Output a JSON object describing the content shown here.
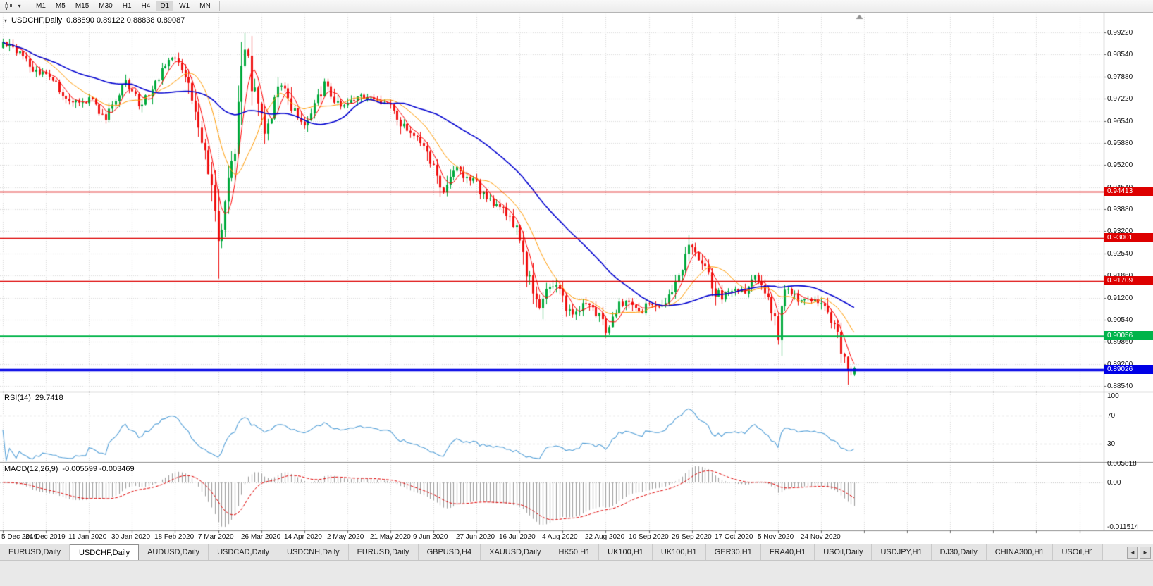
{
  "icons": {
    "symbol_dropdown": "▾",
    "toolbar_caret": "▾"
  },
  "toolbar": {
    "timeframes": [
      "M1",
      "M5",
      "M15",
      "M30",
      "H1",
      "H4",
      "D1",
      "W1",
      "MN"
    ],
    "active_timeframe": "D1"
  },
  "main_panel": {
    "symbol": "USDCHF,Daily",
    "open": "0.88890",
    "high": "0.89122",
    "low": "0.88838",
    "close": "0.89087",
    "ohlc": "0.88890 0.89122 0.88838 0.89087"
  },
  "price_axis": {
    "ticks": [
      "0.99220",
      "0.98540",
      "0.97880",
      "0.97220",
      "0.96540",
      "0.95880",
      "0.95200",
      "0.94540",
      "0.93880",
      "0.93200",
      "0.92540",
      "0.91860",
      "0.91200",
      "0.90540",
      "0.89860",
      "0.89200",
      "0.88540"
    ]
  },
  "hlines": [
    {
      "label": "0.94413",
      "value": 0.94413,
      "color": "#dd0000",
      "width": 1.4
    },
    {
      "label": "0.93001",
      "value": 0.93001,
      "color": "#dd0000",
      "width": 1.4
    },
    {
      "label": "0.91709",
      "value": 0.91709,
      "color": "#dd0000",
      "width": 1.4
    },
    {
      "label": "0.90056",
      "value": 0.90056,
      "color": "#00b44a",
      "width": 2.4
    },
    {
      "label": "0.89026",
      "value": 0.89026,
      "color": "#0000e6",
      "width": 3.4
    }
  ],
  "rsi_panel": {
    "name": "RSI(14)",
    "value": "29.7418",
    "color": "#54a0d8",
    "levels": [
      70,
      30
    ],
    "axis_labels": [
      {
        "text": "100",
        "value": 100
      },
      {
        "text": "70",
        "value": 70
      },
      {
        "text": "30",
        "value": 30
      }
    ]
  },
  "macd_panel": {
    "name": "MACD(12,26,9)",
    "values": "-0.005599 -0.003469",
    "histogram_color": "#9b9b9b",
    "signal_color": "#e00000",
    "axis_labels": [
      {
        "text": "0.005818",
        "value": 0.005818
      },
      {
        "text": "0.00",
        "value": 0
      },
      {
        "text": "-0.011514",
        "value": -0.011514
      }
    ]
  },
  "date_axis": {
    "labels": [
      "5 Dec 2019",
      "24 Dec 2019",
      "11 Jan 2020",
      "30 Jan 2020",
      "18 Feb 2020",
      "7 Mar 2020",
      "26 Mar 2020",
      "14 Apr 2020",
      "2 May 2020",
      "21 May 2020",
      "9 Jun 2020",
      "27 Jun 2020",
      "16 Jul 2020",
      "4 Aug 2020",
      "22 Aug 2020",
      "10 Sep 2020",
      "29 Sep 2020",
      "17 Oct 2020",
      "5 Nov 2020",
      "24 Nov 2020"
    ]
  },
  "tabs": {
    "items": [
      "EURUSD,Daily",
      "USDCHF,Daily",
      "AUDUSD,Daily",
      "USDCAD,Daily",
      "USDCNH,Daily",
      "EURUSD,Daily",
      "GBPUSD,H4",
      "XAUUSD,Daily",
      "HK50,H1",
      "UK100,H1",
      "UK100,H1",
      "GER30,H1",
      "FRA40,H1",
      "USOil,Daily",
      "USDJPY,H1",
      "DJ30,Daily",
      "CHINA300,H1",
      "USOil,H1"
    ],
    "active_index": 1,
    "scroll_arrows": [
      "◄",
      "►"
    ]
  },
  "chart_data": {
    "type": "candlestick",
    "symbol": "USDCHF",
    "timeframe": "Daily",
    "bars": 258,
    "bars_per_date_tick": 13,
    "ylim": [
      0.8854,
      0.9922
    ],
    "up_color": "#00a93c",
    "down_color": "#ef1010",
    "ma_lines": [
      {
        "period": 5,
        "color": "#ff0000",
        "width": 1
      },
      {
        "period": 13,
        "color": "#ff9a00",
        "width": 1
      },
      {
        "period": 40,
        "color": "#0202d0",
        "width": 1.6
      }
    ],
    "indicators": {
      "rsi_period": 14,
      "macd": [
        12,
        26,
        9
      ]
    },
    "close_anchors": [
      [
        0,
        0.989
      ],
      [
        3,
        0.987
      ],
      [
        6,
        0.9845
      ],
      [
        9,
        0.9815
      ],
      [
        13,
        0.9795
      ],
      [
        16,
        0.976
      ],
      [
        19,
        0.973
      ],
      [
        23,
        0.9705
      ],
      [
        26,
        0.9718
      ],
      [
        28,
        0.9692
      ],
      [
        31,
        0.9662
      ],
      [
        33,
        0.97
      ],
      [
        35,
        0.9745
      ],
      [
        37,
        0.9772
      ],
      [
        39,
        0.9745
      ],
      [
        41,
        0.9702
      ],
      [
        43,
        0.9722
      ],
      [
        46,
        0.9775
      ],
      [
        48,
        0.9812
      ],
      [
        50,
        0.984
      ],
      [
        52,
        0.9835
      ],
      [
        54,
        0.9808
      ],
      [
        56,
        0.975
      ],
      [
        58,
        0.9682
      ],
      [
        60,
        0.96
      ],
      [
        62,
        0.95
      ],
      [
        64,
        0.938
      ],
      [
        65,
        0.9292
      ],
      [
        66,
        0.936
      ],
      [
        67,
        0.9425
      ],
      [
        69,
        0.952
      ],
      [
        71,
        0.968
      ],
      [
        72,
        0.98
      ],
      [
        73,
        0.9888
      ],
      [
        74,
        0.9868
      ],
      [
        75,
        0.978
      ],
      [
        77,
        0.97
      ],
      [
        79,
        0.9622
      ],
      [
        81,
        0.9652
      ],
      [
        83,
        0.9748
      ],
      [
        85,
        0.976
      ],
      [
        87,
        0.9702
      ],
      [
        89,
        0.9672
      ],
      [
        91,
        0.9646
      ],
      [
        93,
        0.9672
      ],
      [
        95,
        0.972
      ],
      [
        97,
        0.9765
      ],
      [
        99,
        0.974
      ],
      [
        101,
        0.97
      ],
      [
        103,
        0.9706
      ],
      [
        105,
        0.9716
      ],
      [
        108,
        0.973
      ],
      [
        111,
        0.972
      ],
      [
        114,
        0.9712
      ],
      [
        117,
        0.97
      ],
      [
        119,
        0.9666
      ],
      [
        121,
        0.9632
      ],
      [
        124,
        0.9616
      ],
      [
        127,
        0.9576
      ],
      [
        129,
        0.9532
      ],
      [
        131,
        0.9482
      ],
      [
        133,
        0.9432
      ],
      [
        135,
        0.947
      ],
      [
        137,
        0.9512
      ],
      [
        139,
        0.9492
      ],
      [
        141,
        0.9476
      ],
      [
        143,
        0.9466
      ],
      [
        145,
        0.9426
      ],
      [
        147,
        0.9412
      ],
      [
        150,
        0.9396
      ],
      [
        152,
        0.9376
      ],
      [
        154,
        0.9346
      ],
      [
        156,
        0.9302
      ],
      [
        158,
        0.9212
      ],
      [
        160,
        0.9132
      ],
      [
        162,
        0.9086
      ],
      [
        164,
        0.914
      ],
      [
        166,
        0.9166
      ],
      [
        168,
        0.9136
      ],
      [
        170,
        0.9092
      ],
      [
        172,
        0.9066
      ],
      [
        174,
        0.9086
      ],
      [
        176,
        0.9102
      ],
      [
        178,
        0.9092
      ],
      [
        180,
        0.9062
      ],
      [
        182,
        0.9026
      ],
      [
        184,
        0.9056
      ],
      [
        186,
        0.9092
      ],
      [
        188,
        0.9126
      ],
      [
        190,
        0.9096
      ],
      [
        192,
        0.9072
      ],
      [
        194,
        0.9092
      ],
      [
        196,
        0.9102
      ],
      [
        198,
        0.9086
      ],
      [
        200,
        0.9106
      ],
      [
        202,
        0.9142
      ],
      [
        204,
        0.9182
      ],
      [
        206,
        0.9252
      ],
      [
        207,
        0.9292
      ],
      [
        209,
        0.9256
      ],
      [
        211,
        0.9222
      ],
      [
        213,
        0.9186
      ],
      [
        215,
        0.9142
      ],
      [
        217,
        0.9126
      ],
      [
        219,
        0.9142
      ],
      [
        221,
        0.9152
      ],
      [
        223,
        0.9136
      ],
      [
        225,
        0.9156
      ],
      [
        227,
        0.9182
      ],
      [
        229,
        0.9152
      ],
      [
        231,
        0.9116
      ],
      [
        233,
        0.9042
      ],
      [
        234,
        0.9006
      ],
      [
        235,
        0.9092
      ],
      [
        236,
        0.915
      ],
      [
        238,
        0.9136
      ],
      [
        240,
        0.912
      ],
      [
        242,
        0.911
      ],
      [
        244,
        0.9116
      ],
      [
        246,
        0.911
      ],
      [
        248,
        0.9086
      ],
      [
        250,
        0.9052
      ],
      [
        252,
        0.9006
      ],
      [
        254,
        0.8942
      ],
      [
        255,
        0.8906
      ],
      [
        256,
        0.889
      ],
      [
        257,
        0.8909
      ]
    ],
    "wick_overrides": {
      "65": {
        "low": 0.9178
      },
      "73": {
        "high": 0.9898
      },
      "234": {
        "low": 0.8982
      },
      "255": {
        "low": 0.8858
      }
    },
    "last_candle": {
      "open": 0.8889,
      "high": 0.89122,
      "low": 0.88838,
      "close": 0.89087
    }
  }
}
